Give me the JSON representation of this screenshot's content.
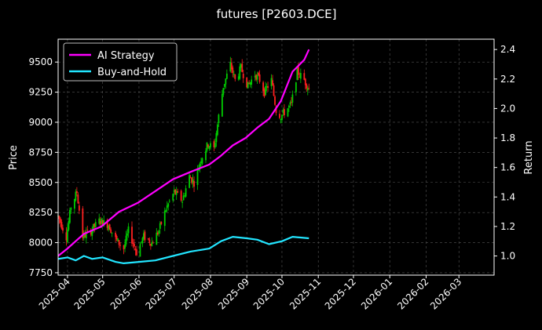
{
  "chart_data": {
    "type": "candlestick+line",
    "title": "futures [P2603.DCE]",
    "ylabel": "Price",
    "y2label": "Return",
    "ylim": [
      7730,
      9690
    ],
    "y2lim": [
      0.87,
      2.47
    ],
    "xlim": [
      "2025-03-24",
      "2026-03-31"
    ],
    "x_ticks": [
      "2025-04",
      "2025-05",
      "2025-06",
      "2025-07",
      "2025-08",
      "2025-09",
      "2025-10",
      "2025-11",
      "2025-12",
      "2026-01",
      "2026-02",
      "2026-03"
    ],
    "y_ticks": [
      7750,
      8000,
      8250,
      8500,
      8750,
      9000,
      9250,
      9500
    ],
    "y2_ticks": [
      "1.0",
      "1.2",
      "1.4",
      "1.6",
      "1.8",
      "2.0",
      "2.2",
      "2.4"
    ],
    "grid": true,
    "legend_position": "top-left",
    "colors": {
      "up": "#00cc00",
      "down": "#ff2020",
      "ai": "#ff00ff",
      "bh": "#22e5ff"
    },
    "price_path": [
      [
        "2025-03-24",
        8220
      ],
      [
        "2025-03-31",
        8050
      ],
      [
        "2025-04-04",
        8300
      ],
      [
        "2025-04-09",
        8420
      ],
      [
        "2025-04-14",
        8050
      ],
      [
        "2025-04-21",
        8100
      ],
      [
        "2025-04-28",
        8180
      ],
      [
        "2025-05-06",
        8150
      ],
      [
        "2025-05-12",
        8030
      ],
      [
        "2025-05-19",
        7950
      ],
      [
        "2025-05-23",
        8100
      ],
      [
        "2025-05-30",
        7920
      ],
      [
        "2025-06-05",
        8050
      ],
      [
        "2025-06-12",
        8000
      ],
      [
        "2025-06-18",
        8100
      ],
      [
        "2025-06-24",
        8280
      ],
      [
        "2025-07-01",
        8420
      ],
      [
        "2025-07-08",
        8350
      ],
      [
        "2025-07-14",
        8550
      ],
      [
        "2025-07-18",
        8500
      ],
      [
        "2025-07-24",
        8700
      ],
      [
        "2025-07-30",
        8820
      ],
      [
        "2025-08-04",
        8780
      ],
      [
        "2025-08-08",
        9050
      ],
      [
        "2025-08-12",
        9300
      ],
      [
        "2025-08-18",
        9480
      ],
      [
        "2025-08-22",
        9350
      ],
      [
        "2025-08-27",
        9450
      ],
      [
        "2025-09-02",
        9300
      ],
      [
        "2025-09-08",
        9400
      ],
      [
        "2025-09-12",
        9350
      ],
      [
        "2025-09-16",
        9250
      ],
      [
        "2025-09-22",
        9350
      ],
      [
        "2025-09-26",
        9100
      ],
      [
        "2025-09-30",
        9050
      ],
      [
        "2025-10-09",
        9150
      ],
      [
        "2025-10-14",
        9420
      ],
      [
        "2025-10-20",
        9350
      ],
      [
        "2025-10-24",
        9280
      ]
    ],
    "series": [
      {
        "name": "AI Strategy",
        "values": [
          [
            "2025-03-24",
            1.0
          ],
          [
            "2025-04-01",
            1.05
          ],
          [
            "2025-04-15",
            1.15
          ],
          [
            "2025-04-30",
            1.2
          ],
          [
            "2025-05-15",
            1.3
          ],
          [
            "2025-05-31",
            1.36
          ],
          [
            "2025-06-15",
            1.44
          ],
          [
            "2025-06-30",
            1.52
          ],
          [
            "2025-07-15",
            1.57
          ],
          [
            "2025-07-31",
            1.62
          ],
          [
            "2025-08-10",
            1.68
          ],
          [
            "2025-08-20",
            1.75
          ],
          [
            "2025-08-31",
            1.8
          ],
          [
            "2025-09-10",
            1.87
          ],
          [
            "2025-09-20",
            1.93
          ],
          [
            "2025-09-30",
            2.05
          ],
          [
            "2025-10-10",
            2.25
          ],
          [
            "2025-10-20",
            2.33
          ],
          [
            "2025-10-24",
            2.4
          ]
        ]
      },
      {
        "name": "Buy-and-Hold",
        "values": [
          [
            "2025-03-24",
            0.98
          ],
          [
            "2025-04-01",
            0.99
          ],
          [
            "2025-04-08",
            0.97
          ],
          [
            "2025-04-15",
            1.0
          ],
          [
            "2025-04-22",
            0.98
          ],
          [
            "2025-05-01",
            0.99
          ],
          [
            "2025-05-12",
            0.96
          ],
          [
            "2025-05-19",
            0.95
          ],
          [
            "2025-06-01",
            0.96
          ],
          [
            "2025-06-15",
            0.97
          ],
          [
            "2025-06-30",
            1.0
          ],
          [
            "2025-07-15",
            1.03
          ],
          [
            "2025-07-31",
            1.05
          ],
          [
            "2025-08-10",
            1.1
          ],
          [
            "2025-08-20",
            1.13
          ],
          [
            "2025-09-01",
            1.12
          ],
          [
            "2025-09-10",
            1.11
          ],
          [
            "2025-09-20",
            1.08
          ],
          [
            "2025-10-01",
            1.1
          ],
          [
            "2025-10-10",
            1.13
          ],
          [
            "2025-10-24",
            1.12
          ]
        ]
      }
    ]
  }
}
